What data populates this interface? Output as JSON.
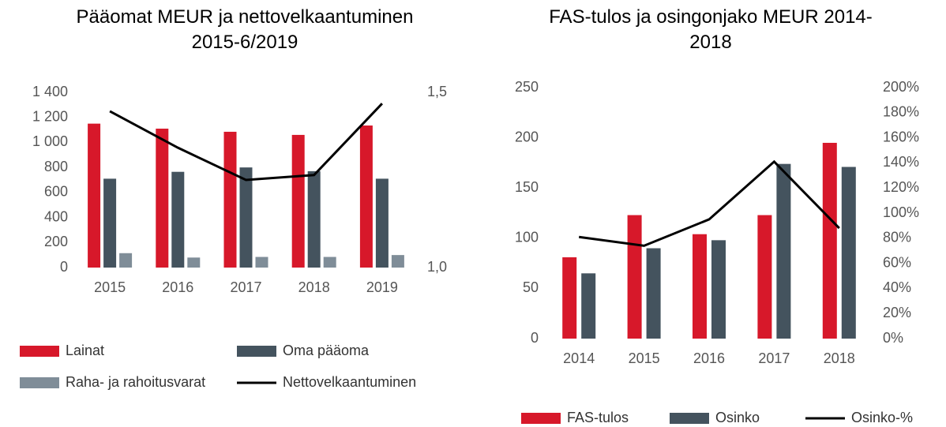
{
  "chart_data": [
    {
      "type": "bar",
      "title": "Pääomat MEUR ja nettovelkaantuminen 2015-6/2019",
      "categories": [
        "2015",
        "2016",
        "2017",
        "2018",
        "2019"
      ],
      "series": [
        {
          "name": "Lainat",
          "type": "bar",
          "color": "#d7182a",
          "values": [
            1150,
            1110,
            1085,
            1060,
            1135
          ]
        },
        {
          "name": "Oma pääoma",
          "type": "bar",
          "color": "#44535e",
          "values": [
            710,
            765,
            800,
            770,
            710
          ]
        },
        {
          "name": "Raha- ja rahoitusvarat",
          "type": "bar",
          "color": "#7f8d98",
          "values": [
            115,
            80,
            85,
            85,
            100
          ]
        },
        {
          "name": "Nettovelkaantuminen",
          "type": "line",
          "axis": "y2",
          "color": "#000000",
          "values": [
            1.446,
            1.342,
            1.25,
            1.264,
            1.468
          ]
        }
      ],
      "ylim": [
        0,
        1400
      ],
      "yticks": [
        0,
        200,
        400,
        600,
        800,
        {
          "value": 1000,
          "label": "1 000"
        },
        {
          "value": 1200,
          "label": "1 200"
        },
        {
          "value": 1400,
          "label": "1 400"
        }
      ],
      "y2lim": [
        1.0,
        1.5
      ],
      "y2ticks": [
        {
          "value": 1.0,
          "label": "1,0"
        },
        {
          "value": 1.5,
          "label": "1,5"
        }
      ],
      "grid": false
    },
    {
      "type": "bar",
      "title": "FAS-tulos ja osingonjako MEUR 2014-2018",
      "categories": [
        "2014",
        "2015",
        "2016",
        "2017",
        "2018"
      ],
      "series": [
        {
          "name": "FAS-tulos",
          "type": "bar",
          "color": "#d7182a",
          "values": [
            81,
            123,
            104,
            123,
            195
          ]
        },
        {
          "name": "Osinko",
          "type": "bar",
          "color": "#44535e",
          "values": [
            65,
            90,
            98,
            174,
            171
          ]
        },
        {
          "name": "Osinko-%",
          "type": "line",
          "axis": "y2",
          "color": "#000000",
          "values": [
            81,
            74,
            95,
            141,
            88
          ]
        }
      ],
      "ylim": [
        0,
        250
      ],
      "yticks": [
        0,
        50,
        100,
        150,
        200,
        250
      ],
      "y2lim": [
        0,
        200
      ],
      "y2ticks": [
        {
          "value": 0,
          "label": "0%"
        },
        {
          "value": 20,
          "label": "20%"
        },
        {
          "value": 40,
          "label": "40%"
        },
        {
          "value": 60,
          "label": "60%"
        },
        {
          "value": 80,
          "label": "80%"
        },
        {
          "value": 100,
          "label": "100%"
        },
        {
          "value": 120,
          "label": "120%"
        },
        {
          "value": 140,
          "label": "140%"
        },
        {
          "value": 160,
          "label": "160%"
        },
        {
          "value": 180,
          "label": "180%"
        },
        {
          "value": 200,
          "label": "200%"
        }
      ],
      "grid": false
    }
  ]
}
